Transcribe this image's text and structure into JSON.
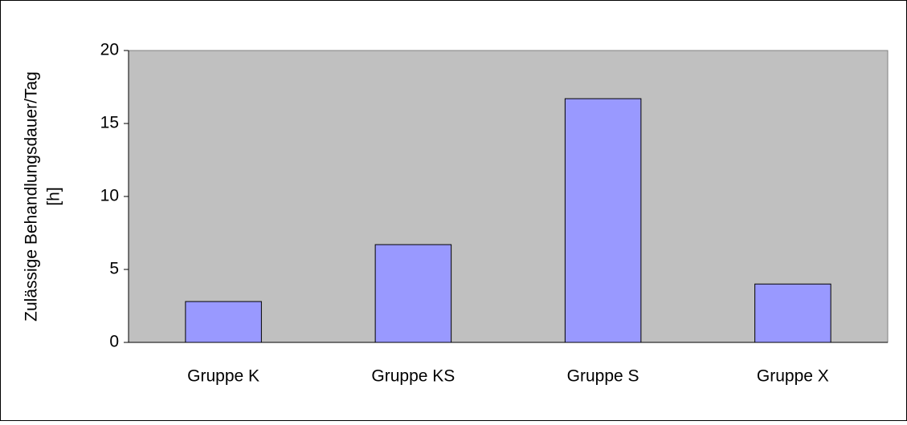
{
  "chart_data": {
    "type": "bar",
    "ylabel": [
      "Zulässige Behandlungsdauer/Tag",
      "[h]"
    ],
    "categories": [
      "Gruppe K",
      "Gruppe KS",
      "Gruppe S",
      "Gruppe X"
    ],
    "values": [
      2.8,
      6.7,
      16.7,
      4.0
    ],
    "color": "#9999ff",
    "plot_background": "#c0c0c0",
    "ylim": [
      0,
      20
    ],
    "yticks": [
      0,
      5,
      10,
      15,
      20
    ],
    "grid": false
  }
}
